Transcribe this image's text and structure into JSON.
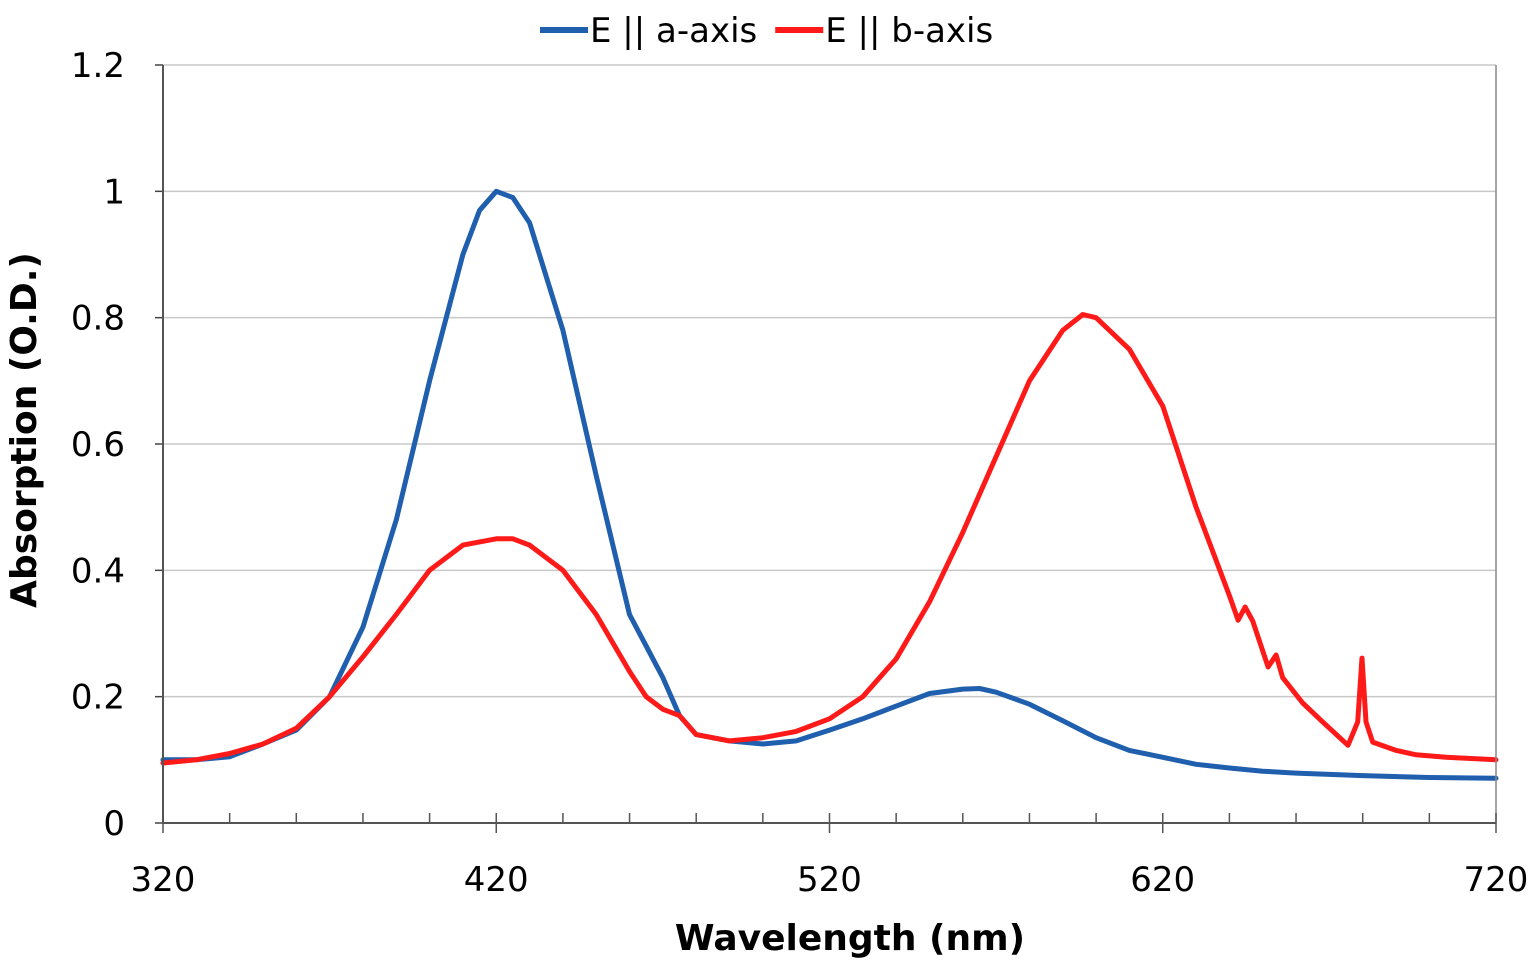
{
  "chart_data": {
    "type": "line",
    "title": "",
    "xlabel": "Wavelength (nm)",
    "ylabel": "Absorption (O.D.)",
    "xlim": [
      320,
      720
    ],
    "ylim": [
      0,
      1.2
    ],
    "x_ticks": [
      320,
      420,
      520,
      620,
      720
    ],
    "x_tick_labels": [
      "320",
      "420",
      "520",
      "620",
      "720"
    ],
    "x_minor_tick_step": 20,
    "y_ticks": [
      0,
      0.2,
      0.4,
      0.6,
      0.8,
      1,
      1.2
    ],
    "y_tick_labels": [
      "0",
      "0.2",
      "0.4",
      "0.6",
      "0.8",
      "1",
      "1.2"
    ],
    "grid": "horizontal",
    "legend_placement": "top-center",
    "series": [
      {
        "name": "E || a-axis",
        "color": "#1f5fad",
        "x": [
          320,
          330,
          340,
          350,
          360,
          370,
          380,
          390,
          400,
          410,
          415,
          420,
          425,
          430,
          440,
          450,
          460,
          465,
          468,
          470,
          475,
          480,
          490,
          500,
          510,
          520,
          530,
          540,
          550,
          560,
          565,
          570,
          580,
          590,
          600,
          610,
          620,
          630,
          640,
          650,
          660,
          680,
          700,
          720
        ],
        "y": [
          0.1,
          0.1,
          0.105,
          0.125,
          0.147,
          0.2,
          0.31,
          0.48,
          0.7,
          0.9,
          0.97,
          1.0,
          0.99,
          0.95,
          0.78,
          0.55,
          0.33,
          0.28,
          0.25,
          0.23,
          0.17,
          0.14,
          0.13,
          0.125,
          0.13,
          0.147,
          0.165,
          0.185,
          0.205,
          0.212,
          0.213,
          0.207,
          0.188,
          0.162,
          0.135,
          0.115,
          0.104,
          0.093,
          0.087,
          0.082,
          0.079,
          0.075,
          0.072,
          0.071
        ]
      },
      {
        "name": "E || b-axis",
        "color": "#ff1a1a",
        "x": [
          320,
          330,
          340,
          350,
          360,
          370,
          380,
          390,
          400,
          410,
          420,
          425,
          430,
          440,
          450,
          460,
          465,
          470,
          475,
          480,
          490,
          500,
          510,
          520,
          530,
          540,
          550,
          560,
          570,
          580,
          590,
          596,
          600,
          610,
          620,
          630,
          640,
          642.6,
          644.7,
          647,
          651.6,
          654,
          656,
          662,
          668,
          675.6,
          678.5,
          679.8,
          681,
          683,
          690,
          696,
          705,
          720
        ],
        "y": [
          0.095,
          0.1,
          0.11,
          0.125,
          0.15,
          0.2,
          0.263,
          0.33,
          0.4,
          0.44,
          0.45,
          0.45,
          0.44,
          0.4,
          0.33,
          0.24,
          0.2,
          0.18,
          0.17,
          0.14,
          0.13,
          0.135,
          0.145,
          0.165,
          0.2,
          0.26,
          0.35,
          0.46,
          0.58,
          0.7,
          0.78,
          0.805,
          0.8,
          0.75,
          0.66,
          0.5,
          0.36,
          0.321,
          0.342,
          0.32,
          0.247,
          0.266,
          0.23,
          0.19,
          0.16,
          0.123,
          0.16,
          0.261,
          0.16,
          0.128,
          0.115,
          0.108,
          0.104,
          0.1
        ]
      }
    ]
  }
}
